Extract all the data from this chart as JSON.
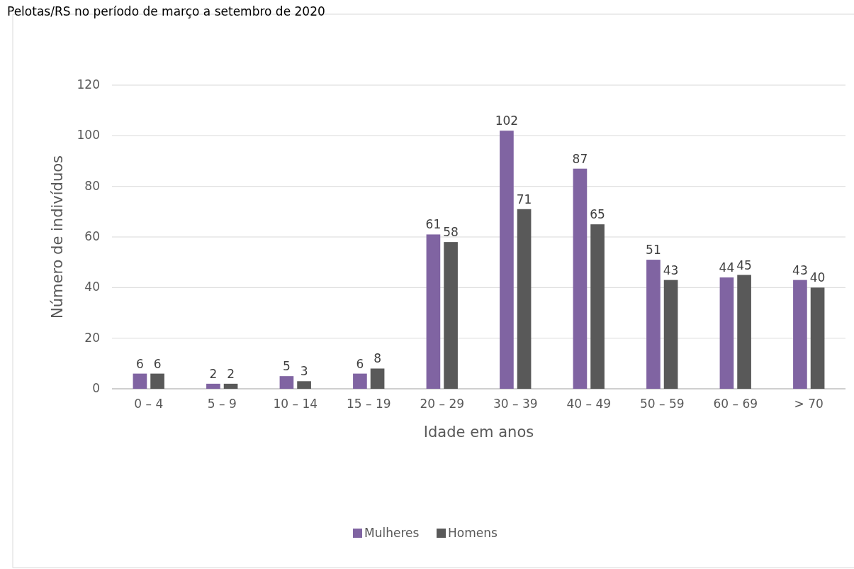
{
  "chart_data": {
    "type": "bar",
    "title": "Pelotas/RS no período de março a setembro de 2020",
    "xlabel": "Idade em anos",
    "ylabel": "Número de indivíduos",
    "categories": [
      "0 – 4",
      "5 – 9",
      "10 – 14",
      "15 – 19",
      "20 – 29",
      "30 – 39",
      "40 – 49",
      "50 – 59",
      "60 – 69",
      "> 70"
    ],
    "series": [
      {
        "name": "Mulheres",
        "color": "#8064a2",
        "values": [
          6,
          2,
          5,
          6,
          61,
          102,
          87,
          51,
          44,
          43
        ]
      },
      {
        "name": "Homens",
        "color": "#595959",
        "values": [
          6,
          2,
          3,
          8,
          58,
          71,
          65,
          43,
          45,
          40
        ]
      }
    ],
    "ylim": [
      0,
      120
    ],
    "yticks": [
      0,
      20,
      40,
      60,
      80,
      100,
      120
    ],
    "grid": "y",
    "legend": "bottom",
    "data_labels": true
  }
}
